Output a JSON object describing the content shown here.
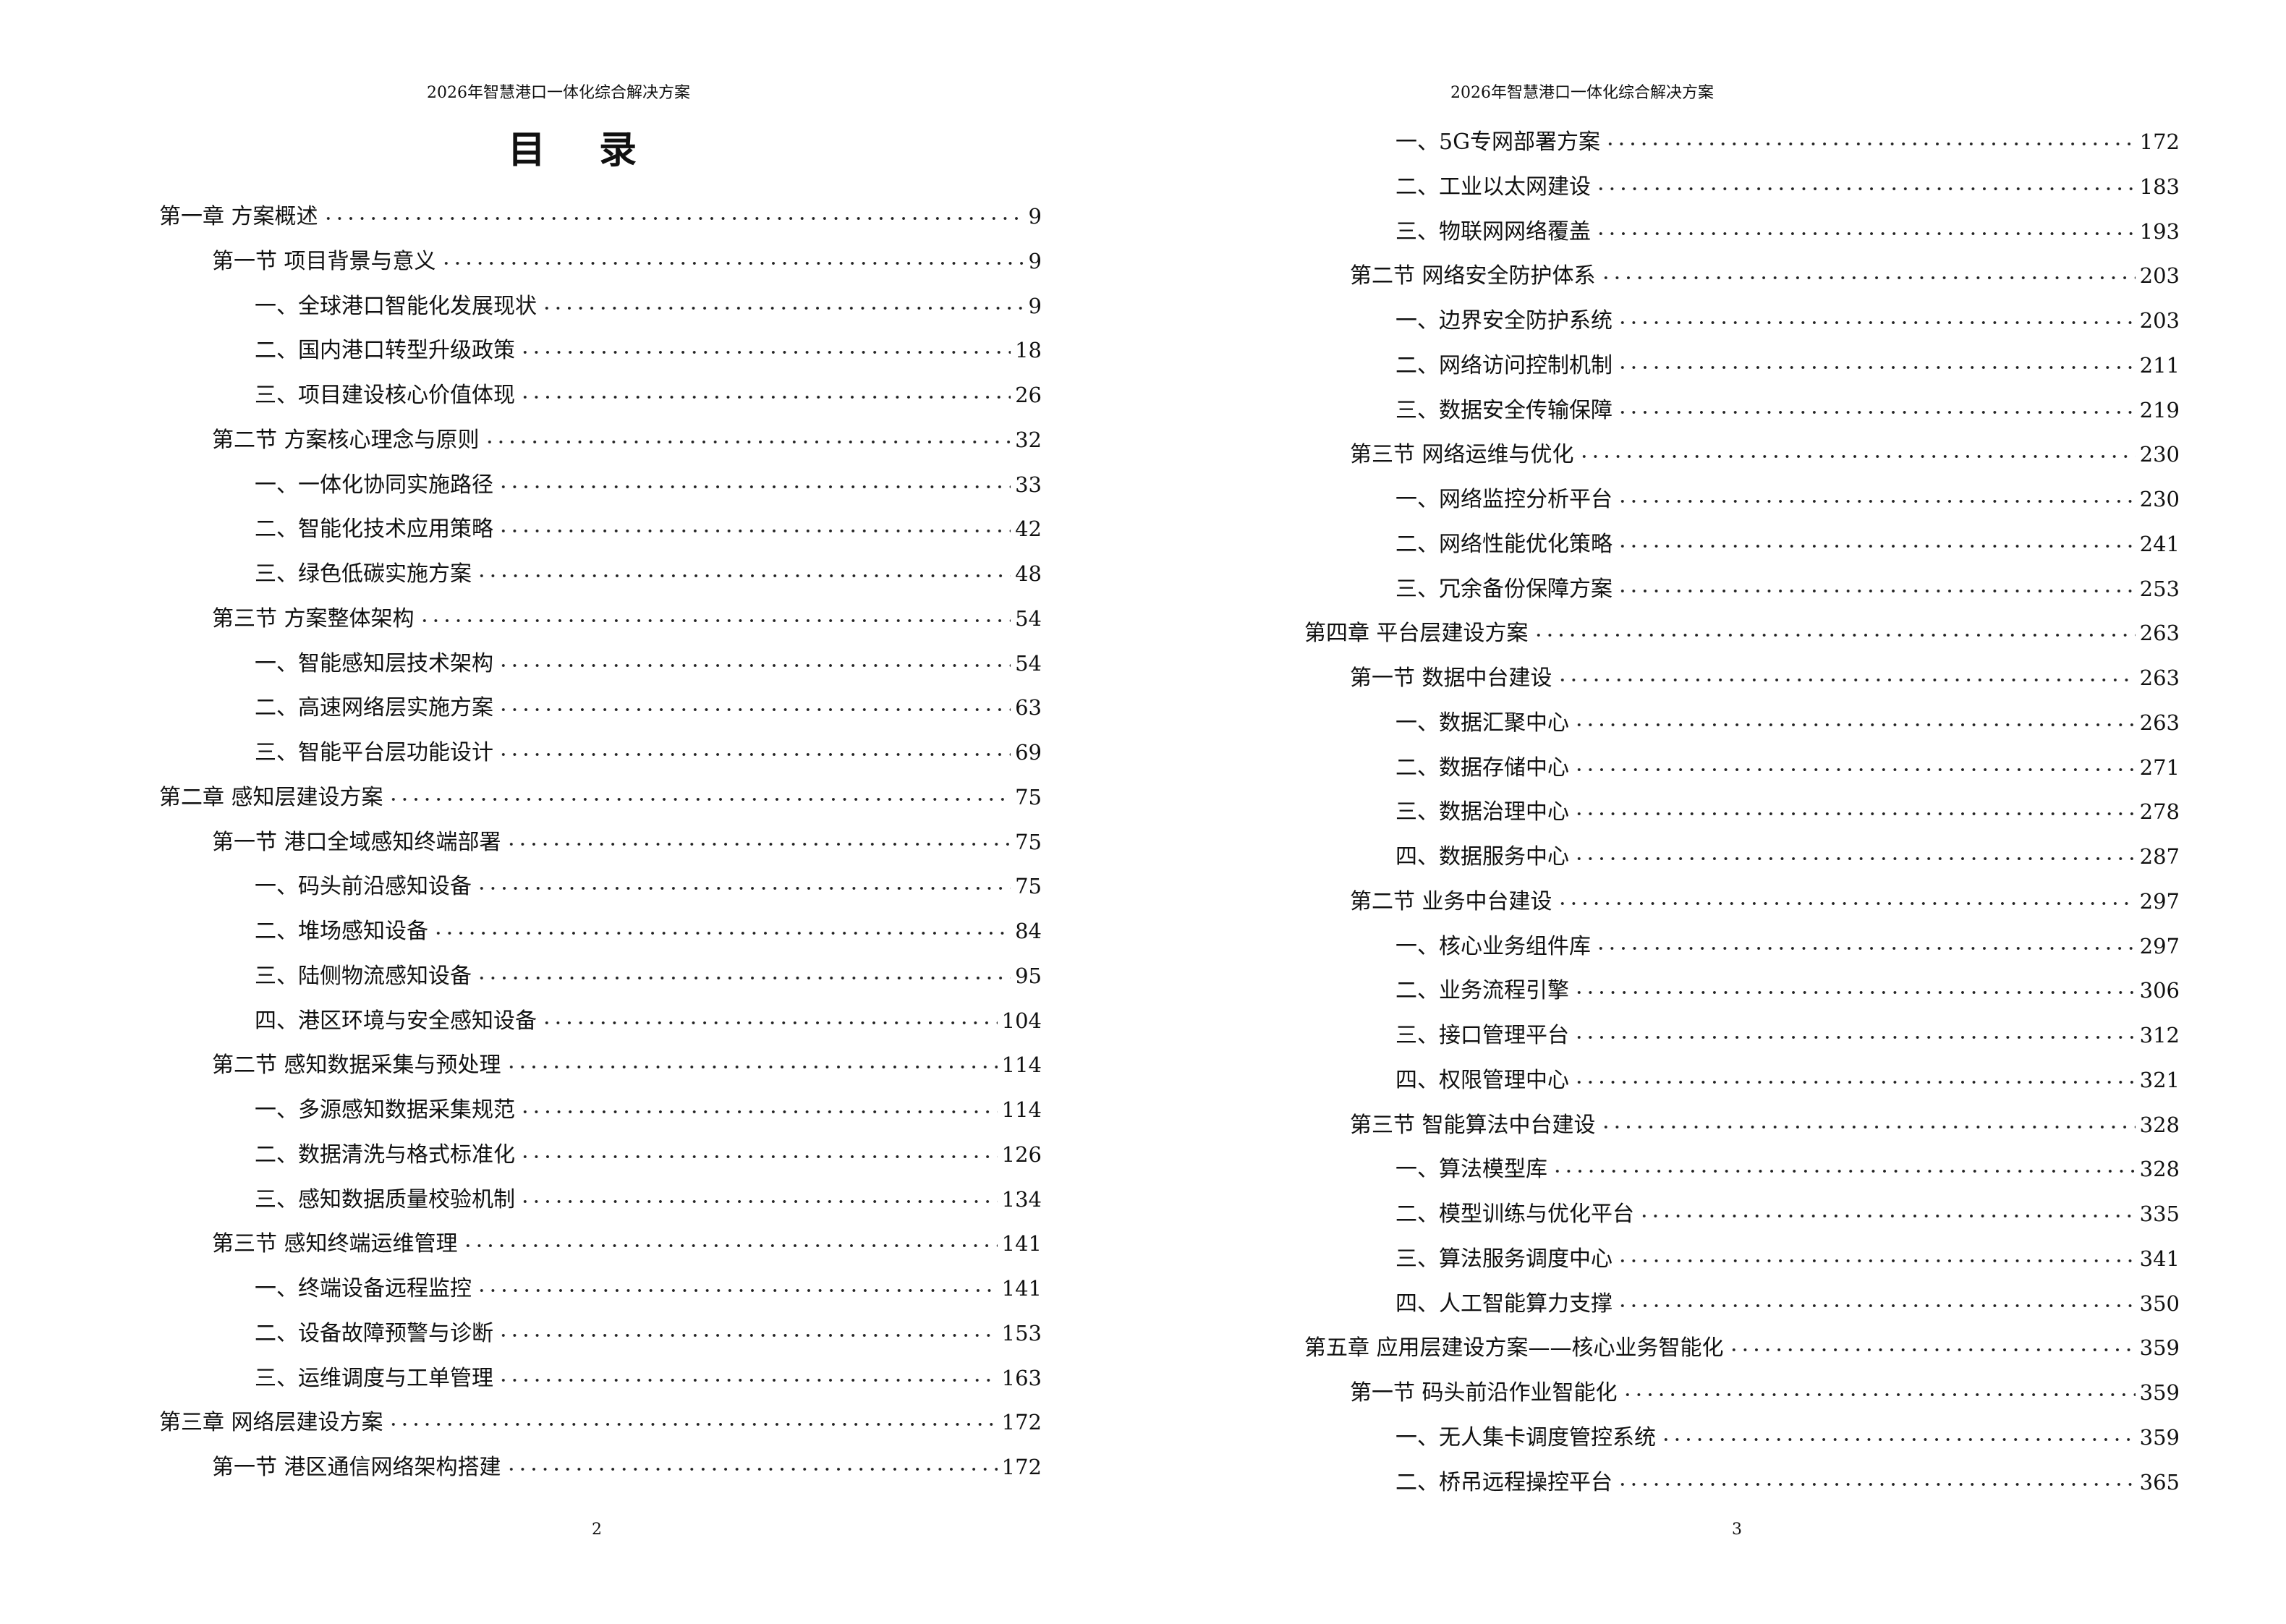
{
  "running_header": "2026年智慧港口一体化综合解决方案",
  "toc_title": "目 录",
  "pages": [
    {
      "folio": "2",
      "entries": [
        {
          "level": 0,
          "text": "第一章  方案概述",
          "page": "9"
        },
        {
          "level": 1,
          "text": "第一节  项目背景与意义",
          "page": "9"
        },
        {
          "level": 2,
          "text": "一、全球港口智能化发展现状",
          "page": "9"
        },
        {
          "level": 2,
          "text": "二、国内港口转型升级政策",
          "page": "18"
        },
        {
          "level": 2,
          "text": "三、项目建设核心价值体现",
          "page": "26"
        },
        {
          "level": 1,
          "text": "第二节  方案核心理念与原则",
          "page": "32"
        },
        {
          "level": 2,
          "text": "一、一体化协同实施路径",
          "page": "33"
        },
        {
          "level": 2,
          "text": "二、智能化技术应用策略",
          "page": "42"
        },
        {
          "level": 2,
          "text": "三、绿色低碳实施方案",
          "page": "48"
        },
        {
          "level": 1,
          "text": "第三节  方案整体架构",
          "page": "54"
        },
        {
          "level": 2,
          "text": "一、智能感知层技术架构",
          "page": "54"
        },
        {
          "level": 2,
          "text": "二、高速网络层实施方案",
          "page": "63"
        },
        {
          "level": 2,
          "text": "三、智能平台层功能设计",
          "page": "69"
        },
        {
          "level": 0,
          "text": "第二章  感知层建设方案",
          "page": "75"
        },
        {
          "level": 1,
          "text": "第一节  港口全域感知终端部署",
          "page": "75"
        },
        {
          "level": 2,
          "text": "一、码头前沿感知设备",
          "page": "75"
        },
        {
          "level": 2,
          "text": "二、堆场感知设备",
          "page": "84"
        },
        {
          "level": 2,
          "text": "三、陆侧物流感知设备",
          "page": "95"
        },
        {
          "level": 2,
          "text": "四、港区环境与安全感知设备",
          "page": "104"
        },
        {
          "level": 1,
          "text": "第二节  感知数据采集与预处理",
          "page": "114"
        },
        {
          "level": 2,
          "text": "一、多源感知数据采集规范",
          "page": "114"
        },
        {
          "level": 2,
          "text": "二、数据清洗与格式标准化",
          "page": "126"
        },
        {
          "level": 2,
          "text": "三、感知数据质量校验机制",
          "page": "134"
        },
        {
          "level": 1,
          "text": "第三节  感知终端运维管理",
          "page": "141"
        },
        {
          "level": 2,
          "text": "一、终端设备远程监控",
          "page": "141"
        },
        {
          "level": 2,
          "text": "二、设备故障预警与诊断",
          "page": "153"
        },
        {
          "level": 2,
          "text": "三、运维调度与工单管理",
          "page": "163"
        },
        {
          "level": 0,
          "text": "第三章  网络层建设方案",
          "page": "172"
        },
        {
          "level": 1,
          "text": "第一节  港区通信网络架构搭建",
          "page": "172"
        }
      ]
    },
    {
      "folio": "3",
      "entries": [
        {
          "level": 2,
          "text": "一、5G专网部署方案",
          "page": "172"
        },
        {
          "level": 2,
          "text": "二、工业以太网建设",
          "page": "183"
        },
        {
          "level": 2,
          "text": "三、物联网网络覆盖",
          "page": "193"
        },
        {
          "level": 1,
          "text": "第二节  网络安全防护体系",
          "page": "203"
        },
        {
          "level": 2,
          "text": "一、边界安全防护系统",
          "page": "203"
        },
        {
          "level": 2,
          "text": "二、网络访问控制机制",
          "page": "211"
        },
        {
          "level": 2,
          "text": "三、数据安全传输保障",
          "page": "219"
        },
        {
          "level": 1,
          "text": "第三节  网络运维与优化",
          "page": "230"
        },
        {
          "level": 2,
          "text": "一、网络监控分析平台",
          "page": "230"
        },
        {
          "level": 2,
          "text": "二、网络性能优化策略",
          "page": "241"
        },
        {
          "level": 2,
          "text": "三、冗余备份保障方案",
          "page": "253"
        },
        {
          "level": 0,
          "text": "第四章  平台层建设方案",
          "page": "263"
        },
        {
          "level": 1,
          "text": "第一节  数据中台建设",
          "page": "263"
        },
        {
          "level": 2,
          "text": "一、数据汇聚中心",
          "page": "263"
        },
        {
          "level": 2,
          "text": "二、数据存储中心",
          "page": "271"
        },
        {
          "level": 2,
          "text": "三、数据治理中心",
          "page": "278"
        },
        {
          "level": 2,
          "text": "四、数据服务中心",
          "page": "287"
        },
        {
          "level": 1,
          "text": "第二节  业务中台建设",
          "page": "297"
        },
        {
          "level": 2,
          "text": "一、核心业务组件库",
          "page": "297"
        },
        {
          "level": 2,
          "text": "二、业务流程引擎",
          "page": "306"
        },
        {
          "level": 2,
          "text": "三、接口管理平台",
          "page": "312"
        },
        {
          "level": 2,
          "text": "四、权限管理中心",
          "page": "321"
        },
        {
          "level": 1,
          "text": "第三节  智能算法中台建设",
          "page": "328"
        },
        {
          "level": 2,
          "text": "一、算法模型库",
          "page": "328"
        },
        {
          "level": 2,
          "text": "二、模型训练与优化平台",
          "page": "335"
        },
        {
          "level": 2,
          "text": "三、算法服务调度中心",
          "page": "341"
        },
        {
          "level": 2,
          "text": "四、人工智能算力支撑",
          "page": "350"
        },
        {
          "level": 0,
          "text": "第五章  应用层建设方案——核心业务智能化",
          "page": "359"
        },
        {
          "level": 1,
          "text": "第一节  码头前沿作业智能化",
          "page": "359"
        },
        {
          "level": 2,
          "text": "一、无人集卡调度管控系统",
          "page": "359"
        },
        {
          "level": 2,
          "text": "二、桥吊远程操控平台",
          "page": "365"
        }
      ]
    }
  ]
}
